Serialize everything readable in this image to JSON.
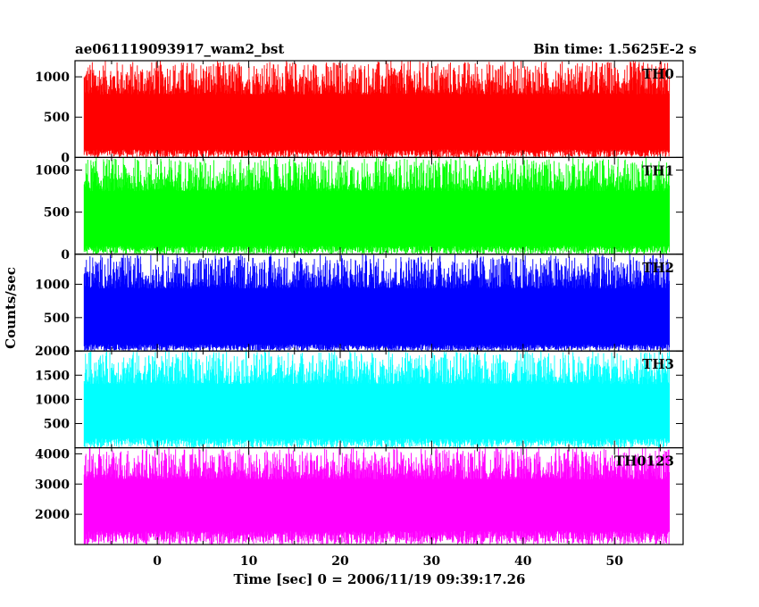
{
  "title_left": "ae061119093917_wam2_bst",
  "title_right": "Bin time: 1.5625E-2 s",
  "ylabel": "Counts/sec",
  "xlabel": "Time [sec] 0 = 2006/11/19 09:39:17.26",
  "chart_data": {
    "type": "line",
    "x_range": [
      -8,
      56
    ],
    "xlim": [
      -9,
      57.5
    ],
    "x_ticks": [
      0,
      10,
      20,
      30,
      40,
      50
    ],
    "panels": [
      {
        "name": "TH0",
        "color": "#ff0000",
        "ylim": [
          0,
          1200
        ],
        "y_ticks": [
          0,
          500,
          1000
        ],
        "baseline": 100,
        "mean": 420,
        "peak_max": 1200
      },
      {
        "name": "TH1",
        "color": "#00ff00",
        "ylim": [
          0,
          1150
        ],
        "y_ticks": [
          0,
          500,
          1000
        ],
        "baseline": 100,
        "mean": 470,
        "peak_max": 1150
      },
      {
        "name": "TH2",
        "color": "#0000ff",
        "ylim": [
          0,
          1450
        ],
        "y_ticks": [
          0,
          500,
          1000
        ],
        "baseline": 100,
        "mean": 560,
        "peak_max": 1450
      },
      {
        "name": "TH3",
        "color": "#00ffff",
        "ylim": [
          0,
          2000
        ],
        "y_ticks": [
          500,
          1000,
          1500,
          2000
        ],
        "baseline": 200,
        "mean": 1050,
        "peak_max": 2000
      },
      {
        "name": "TH0123",
        "color": "#ff00ff",
        "ylim": [
          1000,
          4200
        ],
        "y_ticks": [
          2000,
          3000,
          4000
        ],
        "baseline": 1450,
        "mean": 2350,
        "peak_max": 4200
      }
    ]
  }
}
